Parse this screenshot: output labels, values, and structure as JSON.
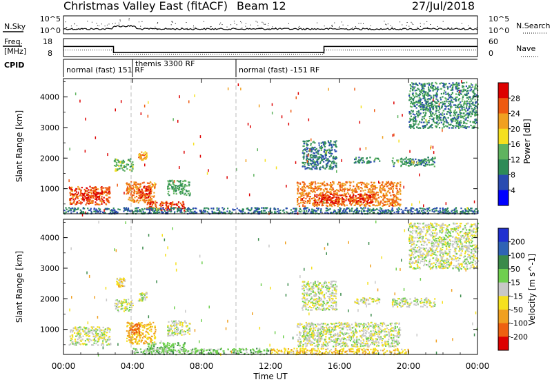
{
  "header": {
    "title": "Christmas Valley East (fitACF)",
    "beam": "Beam 12",
    "date": "27/Jul/2018"
  },
  "noise_panel": {
    "left_label": "N.Sky",
    "left_ticks": [
      "10^5",
      "10^0"
    ],
    "right_ticks": [
      "10^5",
      "10^0"
    ],
    "right_label": "N.Search"
  },
  "freq_panel": {
    "left_label_1": "Freq.",
    "left_label_2": "[MHz]",
    "left_ticks": [
      "18",
      "8"
    ],
    "right_ticks": [
      "60",
      "0"
    ],
    "right_label": "Nave",
    "freq_steps": [
      [
        0,
        13.6
      ],
      [
        2.9,
        13.6
      ],
      [
        2.9,
        10.2
      ],
      [
        15.1,
        10.2
      ],
      [
        15.1,
        13.6
      ],
      [
        24,
        13.6
      ]
    ],
    "nave_steps": [
      [
        0,
        22
      ],
      [
        2.9,
        22
      ],
      [
        2.9,
        8
      ],
      [
        15.1,
        8
      ],
      [
        15.1,
        22
      ],
      [
        24,
        22
      ]
    ]
  },
  "cpid": {
    "label": "CPID",
    "segments": [
      {
        "text": "normal (fast) 151 RF",
        "start": 0
      },
      {
        "text": "themis 3300 RF",
        "start": 4.0
      },
      {
        "text": "normal (fast) -151 RF",
        "start": 10.0
      }
    ]
  },
  "axes": {
    "ylabel": "Slant Range [km]",
    "y_ticks": [
      "1000",
      "2000",
      "3000",
      "4000"
    ],
    "x_ticks": [
      "00:00",
      "04:00",
      "08:00",
      "12:00",
      "16:00",
      "20:00",
      "00:00"
    ],
    "xlabel": "Time UT"
  },
  "power_colorbar": {
    "label": "Power [dB]",
    "ticks": [
      "4",
      "8",
      "12",
      "16",
      "20",
      "24",
      "28"
    ],
    "colors": [
      "#0000ff",
      "#2a4bb0",
      "#2e8b57",
      "#5fb35f",
      "#f5e01e",
      "#f0a020",
      "#ee5a10",
      "#dd0000"
    ]
  },
  "velocity_colorbar": {
    "label": "Velocity [m s^-1]",
    "ticks": [
      "200",
      "100",
      "50",
      "15",
      "-15",
      "-50",
      "-100",
      "-200"
    ],
    "colors": [
      "#2030d0",
      "#2f63b5",
      "#3a8a4a",
      "#6fcf4f",
      "#c8c8c8",
      "#f5e01e",
      "#f0a020",
      "#ee6010",
      "#dd0000"
    ]
  },
  "chart_data": [
    {
      "type": "heatmap",
      "title": "Power",
      "xlabel": "Time UT",
      "ylabel": "Slant Range [km]",
      "xlim": [
        0,
        24
      ],
      "ylim": [
        180,
        4600
      ],
      "units": "dB",
      "value_range": [
        0,
        30
      ],
      "regions": [
        {
          "t": [
            0.3,
            2.7
          ],
          "r": [
            500,
            1100
          ],
          "value": 26
        },
        {
          "t": [
            1.0,
            2.2
          ],
          "r": [
            650,
            950
          ],
          "value": 29
        },
        {
          "t": [
            3.6,
            5.3
          ],
          "r": [
            550,
            1250
          ],
          "value": 24
        },
        {
          "t": [
            4.3,
            5.0
          ],
          "r": [
            700,
            1100
          ],
          "value": 28
        },
        {
          "t": [
            4.8,
            7.0
          ],
          "r": [
            300,
            600
          ],
          "value": 27
        },
        {
          "t": [
            6.0,
            7.3
          ],
          "r": [
            800,
            1300
          ],
          "value": 12
        },
        {
          "t": [
            2.9,
            4.0
          ],
          "r": [
            1600,
            2000
          ],
          "value": 14
        },
        {
          "t": [
            4.3,
            4.8
          ],
          "r": [
            1950,
            2250
          ],
          "value": 22
        },
        {
          "t": [
            13.5,
            19.5
          ],
          "r": [
            450,
            1250
          ],
          "value": 24
        },
        {
          "t": [
            14.5,
            18.0
          ],
          "r": [
            550,
            850
          ],
          "value": 29
        },
        {
          "t": [
            13.8,
            15.8
          ],
          "r": [
            1650,
            2600
          ],
          "value": 9
        },
        {
          "t": [
            16.8,
            18.3
          ],
          "r": [
            1850,
            2050
          ],
          "value": 10
        },
        {
          "t": [
            19.0,
            21.5
          ],
          "r": [
            1750,
            2050
          ],
          "value": 10
        },
        {
          "t": [
            0,
            24
          ],
          "r": [
            200,
            400
          ],
          "value": 8
        },
        {
          "t": [
            20.0,
            24.0
          ],
          "r": [
            3000,
            4500
          ],
          "value": 10
        }
      ]
    },
    {
      "type": "heatmap",
      "title": "Velocity",
      "xlabel": "Time UT",
      "ylabel": "Slant Range [km]",
      "xlim": [
        0,
        24
      ],
      "ylim": [
        180,
        4600
      ],
      "units": "m s^-1",
      "value_range": [
        -200,
        200
      ],
      "regions": [
        {
          "t": [
            0.3,
            2.7
          ],
          "r": [
            500,
            1100
          ],
          "value": 0
        },
        {
          "t": [
            3.6,
            5.3
          ],
          "r": [
            550,
            1250
          ],
          "value": -60
        },
        {
          "t": [
            3.8,
            4.4
          ],
          "r": [
            850,
            1200
          ],
          "value": -120
        },
        {
          "t": [
            4.8,
            7.0
          ],
          "r": [
            300,
            600
          ],
          "value": 30
        },
        {
          "t": [
            6.0,
            7.3
          ],
          "r": [
            800,
            1300
          ],
          "value": 0
        },
        {
          "t": [
            2.9,
            4.0
          ],
          "r": [
            1600,
            2000
          ],
          "value": 0
        },
        {
          "t": [
            3.0,
            3.5
          ],
          "r": [
            2400,
            2700
          ],
          "value": -30
        },
        {
          "t": [
            4.3,
            4.8
          ],
          "r": [
            1950,
            2250
          ],
          "value": 0
        },
        {
          "t": [
            13.5,
            19.5
          ],
          "r": [
            450,
            1250
          ],
          "value": 0
        },
        {
          "t": [
            13.8,
            15.8
          ],
          "r": [
            1650,
            2600
          ],
          "value": 0
        },
        {
          "t": [
            16.8,
            18.3
          ],
          "r": [
            1850,
            2050
          ],
          "value": 0
        },
        {
          "t": [
            19.0,
            21.5
          ],
          "r": [
            1750,
            2050
          ],
          "value": 0
        },
        {
          "t": [
            4.0,
            12.0
          ],
          "r": [
            200,
            400
          ],
          "value": 30
        },
        {
          "t": [
            12.0,
            20.0
          ],
          "r": [
            200,
            400
          ],
          "value": -40
        },
        {
          "t": [
            20.0,
            24.0
          ],
          "r": [
            3000,
            4500
          ],
          "value": 0
        }
      ]
    }
  ]
}
